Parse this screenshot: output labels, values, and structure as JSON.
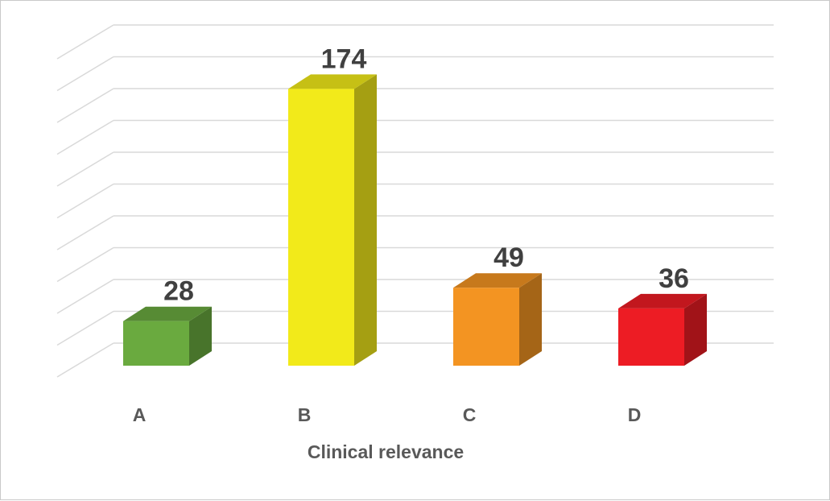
{
  "chart_data": {
    "type": "bar",
    "style": "3d-column",
    "categories": [
      "A",
      "B",
      "C",
      "D"
    ],
    "values": [
      28,
      174,
      49,
      36
    ],
    "colors": [
      "#6aaa3f",
      "#f2ea1a",
      "#f39422",
      "#ed1c24"
    ],
    "data_labels": [
      "28",
      "174",
      "49",
      "36"
    ],
    "xlabel": "Clinical relevance",
    "ylabel": "",
    "ylim": [
      0,
      200
    ],
    "grid": true,
    "legend": "none"
  }
}
